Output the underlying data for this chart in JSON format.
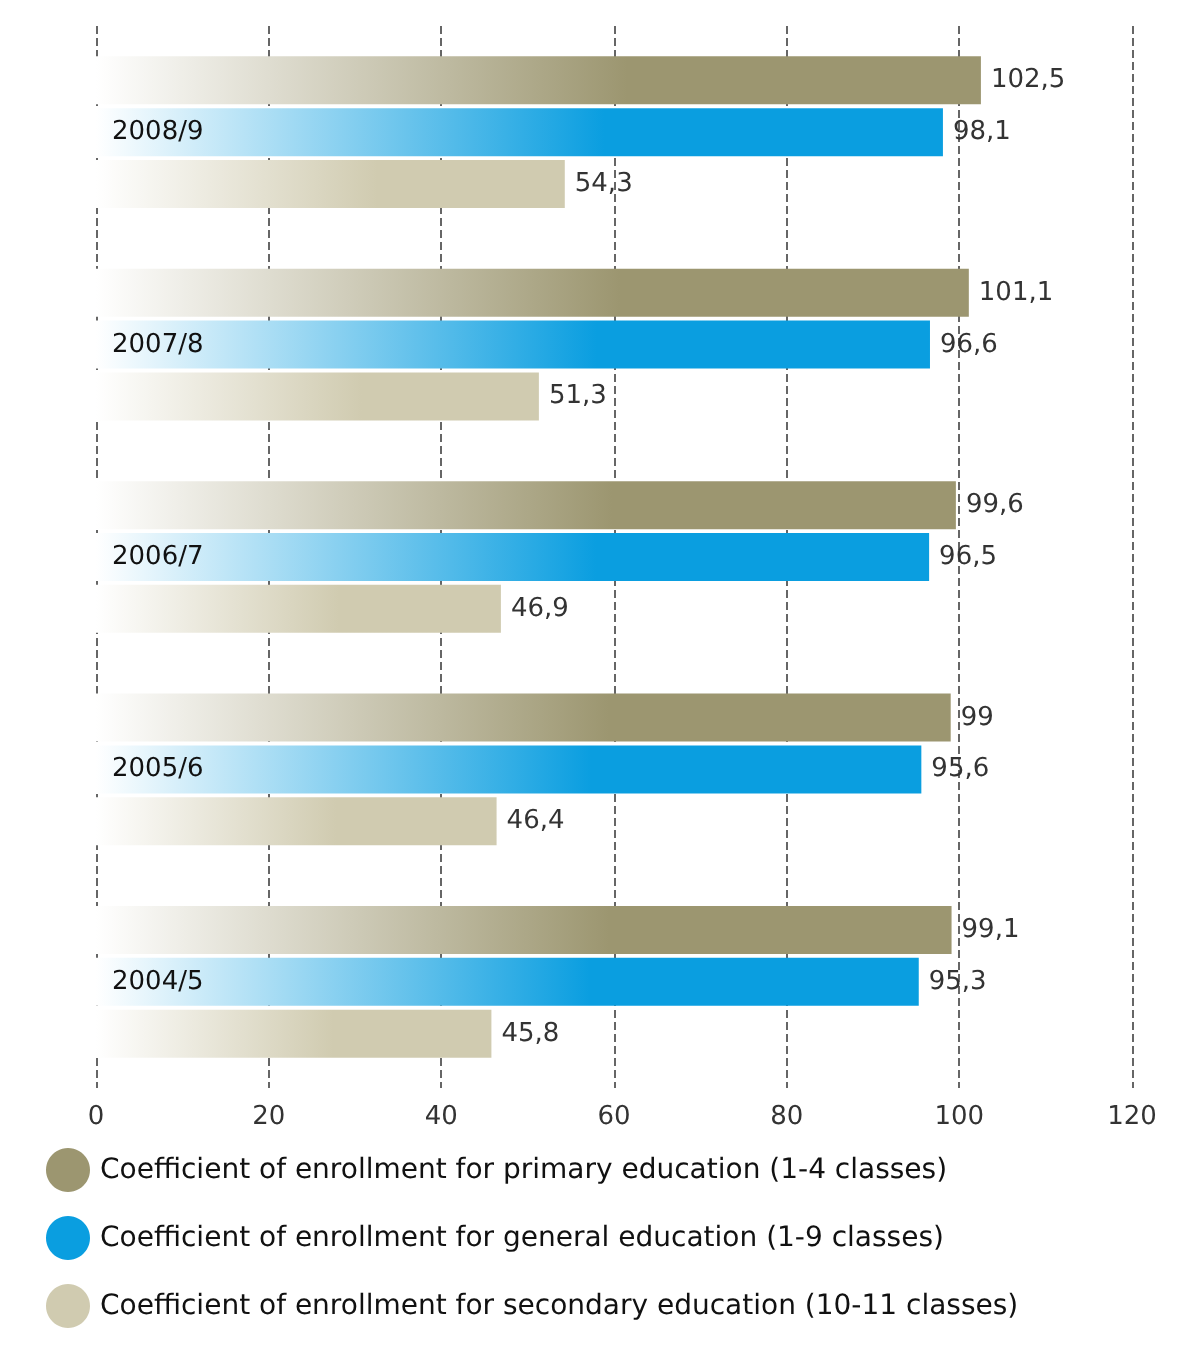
{
  "chart_data": {
    "type": "bar",
    "orientation": "horizontal",
    "categories": [
      "2008/9",
      "2007/8",
      "2006/7",
      "2005/6",
      "2004/5"
    ],
    "series": [
      {
        "name": "Coefficient of enrollment for primary education (1-4 classes)",
        "color": "#9c9670",
        "values": [
          102.5,
          101.1,
          99.6,
          99,
          99.1
        ],
        "value_labels": [
          "102,5",
          "101,1",
          "99,6",
          "99",
          "99,1"
        ]
      },
      {
        "name": "Coefficient of enrollment for general education (1-9 classes)",
        "color": "#0a9ee0",
        "values": [
          98.1,
          96.6,
          96.5,
          95.6,
          95.3
        ],
        "value_labels": [
          "98,1",
          "96,6",
          "96,5",
          "95,6",
          "95,3"
        ]
      },
      {
        "name": "Coefficient of enrollment for secondary education (10-11 classes)",
        "color": "#d0cbb0",
        "values": [
          54.3,
          51.3,
          46.9,
          46.4,
          45.8
        ],
        "value_labels": [
          "54,3",
          "51,3",
          "46,9",
          "46,4",
          "45,8"
        ]
      }
    ],
    "xlim": [
      0,
      120
    ],
    "xticks": [
      0,
      20,
      40,
      60,
      80,
      100,
      120
    ],
    "grid": "x",
    "legend": "bottom"
  }
}
